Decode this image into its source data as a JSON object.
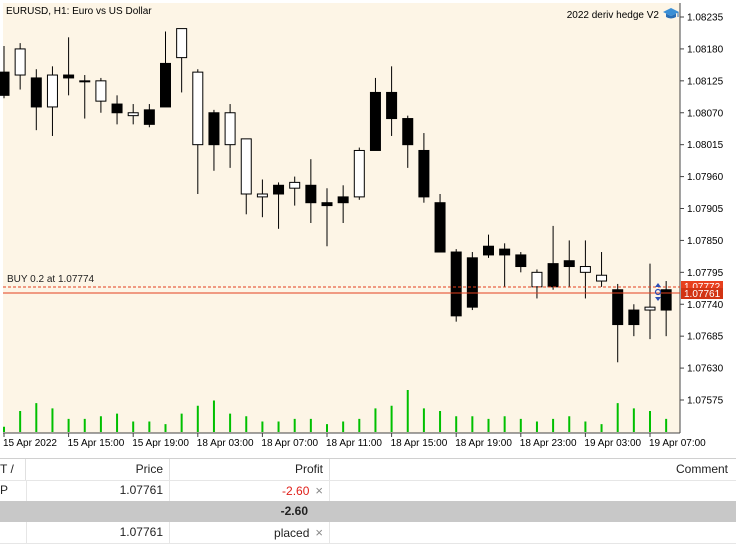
{
  "chart": {
    "symbol_label": "EURUSD, H1:  Euro vs US Dollar",
    "ea_label": "2022 deriv hedge V2",
    "ea_icon": "graduation-cap-icon",
    "trade_label": "BUY 0.2 at 1.07774",
    "price_tags": {
      "upper": "1.07772",
      "lower": "1.07761"
    },
    "colors": {
      "background": "#fdf5e6",
      "bull": "#ffffff",
      "bear": "#000000",
      "volume": "#00c000",
      "trade_line": "#e2401e",
      "tag": "#e8401e"
    }
  },
  "chart_data": {
    "type": "candlestick",
    "y_ticks": [
      "1.08235",
      "1.08180",
      "1.08125",
      "1.08070",
      "1.08015",
      "1.07960",
      "1.07905",
      "1.07850",
      "1.07795",
      "1.07740",
      "1.07685",
      "1.07630",
      "1.07575"
    ],
    "x_ticks": [
      "15 Apr 2022",
      "15 Apr 15:00",
      "15 Apr 19:00",
      "18 Apr 03:00",
      "18 Apr 07:00",
      "18 Apr 11:00",
      "18 Apr 15:00",
      "18 Apr 19:00",
      "18 Apr 23:00",
      "19 Apr 03:00",
      "19 Apr 07:00"
    ],
    "candles": [
      [
        1.0814,
        1.08185,
        1.08095,
        1.081
      ],
      [
        1.08135,
        1.0819,
        1.0811,
        1.0818
      ],
      [
        1.0813,
        1.08145,
        1.0804,
        1.0808
      ],
      [
        1.0808,
        1.0815,
        1.0803,
        1.08135
      ],
      [
        1.08135,
        1.082,
        1.081,
        1.0813
      ],
      [
        1.08125,
        1.08135,
        1.0806,
        1.08125
      ],
      [
        1.0809,
        1.0813,
        1.0807,
        1.08125
      ],
      [
        1.08085,
        1.081,
        1.0805,
        1.0807
      ],
      [
        1.08065,
        1.08085,
        1.0805,
        1.0807
      ],
      [
        1.08075,
        1.08085,
        1.08045,
        1.0805
      ],
      [
        1.08155,
        1.0821,
        1.0808,
        1.0808
      ],
      [
        1.08165,
        1.08215,
        1.08105,
        1.08215
      ],
      [
        1.08015,
        1.08145,
        1.0793,
        1.0814
      ],
      [
        1.0807,
        1.08075,
        1.0797,
        1.08015
      ],
      [
        1.08015,
        1.08085,
        1.07975,
        1.0807
      ],
      [
        1.0793,
        1.08025,
        1.07895,
        1.08025
      ],
      [
        1.07925,
        1.07955,
        1.0789,
        1.0793
      ],
      [
        1.07945,
        1.0795,
        1.0787,
        1.0793
      ],
      [
        1.0794,
        1.0796,
        1.0791,
        1.0795
      ],
      [
        1.07945,
        1.0799,
        1.0788,
        1.07915
      ],
      [
        1.07915,
        1.0794,
        1.0784,
        1.0791
      ],
      [
        1.07925,
        1.07945,
        1.0788,
        1.07915
      ],
      [
        1.07925,
        1.0801,
        1.0792,
        1.08005
      ],
      [
        1.08105,
        1.0813,
        1.08005,
        1.08005
      ],
      [
        1.08105,
        1.0815,
        1.0803,
        1.0806
      ],
      [
        1.0806,
        1.08065,
        1.07975,
        1.08015
      ],
      [
        1.08005,
        1.08035,
        1.07915,
        1.07925
      ],
      [
        1.07915,
        1.0793,
        1.0783,
        1.0783
      ],
      [
        1.0783,
        1.07835,
        1.0771,
        1.0772
      ],
      [
        1.0782,
        1.0783,
        1.0773,
        1.07735
      ],
      [
        1.0784,
        1.0786,
        1.0782,
        1.07825
      ],
      [
        1.07835,
        1.07845,
        1.0777,
        1.07825
      ],
      [
        1.07825,
        1.0783,
        1.07795,
        1.07805
      ],
      [
        1.0777,
        1.078,
        1.0775,
        1.07795
      ],
      [
        1.0781,
        1.07875,
        1.07765,
        1.0777
      ],
      [
        1.07815,
        1.0785,
        1.0777,
        1.07805
      ],
      [
        1.07795,
        1.0785,
        1.0775,
        1.07805
      ],
      [
        1.0778,
        1.0783,
        1.0777,
        1.0779
      ],
      [
        1.07765,
        1.07775,
        1.0764,
        1.07705
      ],
      [
        1.0773,
        1.0774,
        1.07685,
        1.07705
      ],
      [
        1.0773,
        1.0781,
        1.0768,
        1.07735
      ],
      [
        1.07765,
        1.0778,
        1.07685,
        1.0773
      ]
    ],
    "volumes": [
      2,
      8,
      11,
      9,
      5,
      5,
      6,
      7,
      4,
      4,
      3,
      7,
      10,
      12,
      7,
      6,
      4,
      4,
      5,
      5,
      3,
      4,
      5,
      9,
      10,
      16,
      9,
      8,
      6,
      6,
      5,
      6,
      5,
      4,
      5,
      6,
      4,
      3,
      11,
      9,
      8,
      5
    ],
    "grid": false
  },
  "panel": {
    "headers": {
      "tp": "T / P",
      "price": "Price",
      "profit": "Profit",
      "comment": "Comment"
    },
    "rows": [
      {
        "price": "1.07761",
        "profit": "-2.60",
        "close": "×"
      },
      {
        "total": "-2.60"
      },
      {
        "price": "1.07761",
        "profit": "placed",
        "close": "×"
      }
    ]
  }
}
